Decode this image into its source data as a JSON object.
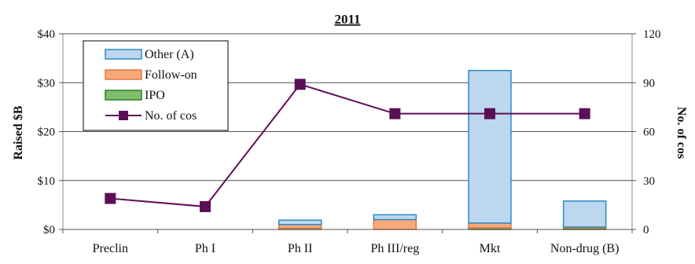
{
  "chart_data": {
    "type": "bar",
    "title": "2011",
    "xlabel": "",
    "ylabel": "Raised $B",
    "y2label": "No. of cos",
    "categories": [
      "Preclin",
      "Ph I",
      "Ph II",
      "Ph III/reg",
      "Mkt",
      "Non-drug (B)"
    ],
    "ylim": [
      0,
      40
    ],
    "yticks": [
      0,
      10,
      20,
      30,
      40
    ],
    "ytick_labels": [
      "$0",
      "$10",
      "$20",
      "$30",
      "$40"
    ],
    "y2lim": [
      0,
      120
    ],
    "yticks2": [
      0,
      30,
      60,
      90,
      120
    ],
    "ytick2_labels": [
      "0",
      "30",
      "60",
      "90",
      "120"
    ],
    "grid": true,
    "legend_position": "top-left",
    "stacked": true,
    "series": [
      {
        "name": "IPO",
        "kind": "bar",
        "axis": "left",
        "values": [
          0,
          0,
          0.2,
          0,
          0.3,
          0.3
        ],
        "fill": "#7fbf6a",
        "stroke": "#2f7a2a"
      },
      {
        "name": "Follow-on",
        "kind": "bar",
        "axis": "left",
        "values": [
          0,
          0,
          0.8,
          2.0,
          1.0,
          0.2
        ],
        "fill": "#f7a97a",
        "stroke": "#e0783e"
      },
      {
        "name": "Other (A)",
        "kind": "bar",
        "axis": "left",
        "values": [
          0,
          0,
          0.9,
          1.0,
          31.2,
          5.3
        ],
        "fill": "#bdd7ee",
        "stroke": "#2a8bc8"
      },
      {
        "name": "No. of cos",
        "kind": "line",
        "axis": "right",
        "values": [
          19,
          14,
          89,
          71,
          71,
          71
        ],
        "color": "#5b0f57"
      }
    ],
    "legend_order": [
      "Other (A)",
      "Follow-on",
      "IPO",
      "No. of cos"
    ]
  }
}
